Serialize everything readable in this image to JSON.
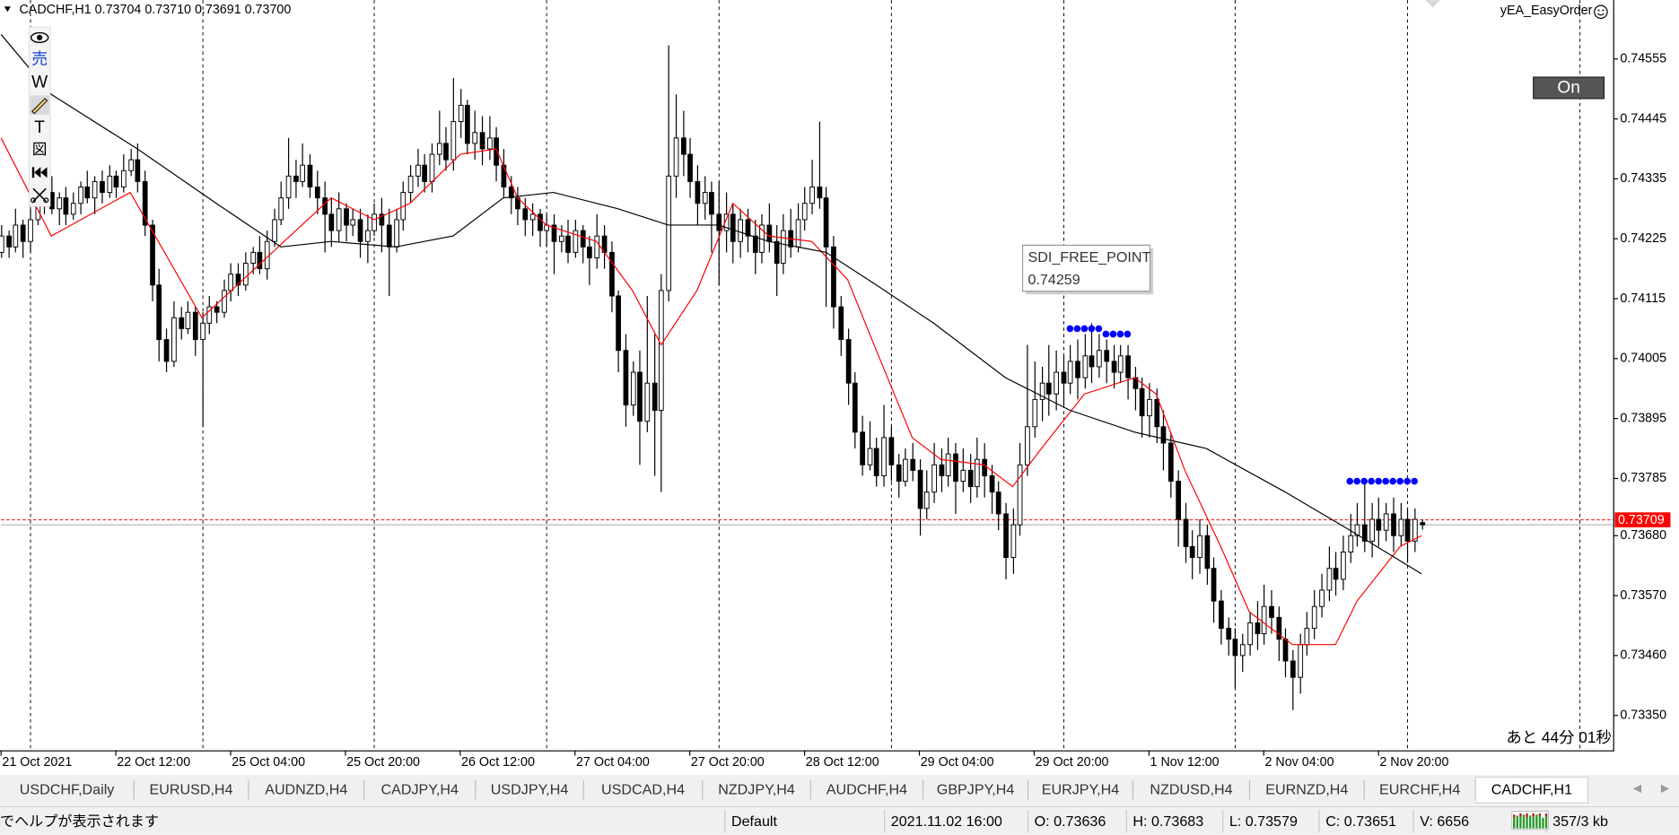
{
  "chart_data": {
    "type": "candlestick",
    "header": "CADCHF,H1  0.73704 0.73710 0.73691 0.73700",
    "expert": "yEA_EasyOrder",
    "button": "On",
    "countdown": "あと 44分 01秒",
    "toolbar": [
      "売",
      "W",
      "T",
      "図"
    ],
    "xlim": [
      0,
      225
    ],
    "ylim": [
      0.73286,
      0.74663
    ],
    "grid": false,
    "up_color": "#ffffff",
    "down_color": "#000000",
    "outline": "#000000",
    "xticks": [
      {
        "value": 0,
        "label": "21 Oct 2021"
      },
      {
        "value": 16,
        "label": "22 Oct 12:00"
      },
      {
        "value": 32,
        "label": "25 Oct 04:00"
      },
      {
        "value": 48,
        "label": "25 Oct 20:00"
      },
      {
        "value": 64,
        "label": "26 Oct 12:00"
      },
      {
        "value": 80,
        "label": "27 Oct 04:00"
      },
      {
        "value": 96,
        "label": "27 Oct 20:00"
      },
      {
        "value": 112,
        "label": "28 Oct 12:00"
      },
      {
        "value": 128,
        "label": "29 Oct 04:00"
      },
      {
        "value": 144,
        "label": "29 Oct 20:00"
      },
      {
        "value": 160,
        "label": "1 Nov 12:00"
      },
      {
        "value": 176,
        "label": "2 Nov 04:00"
      },
      {
        "value": 192,
        "label": "2 Nov 20:00"
      }
    ],
    "yticks": [
      0.74555,
      0.74445,
      0.74335,
      0.74225,
      0.74115,
      0.74005,
      0.73895,
      0.73785,
      {
        "value": 0.7368,
        "label": "0.73680"
      },
      {
        "value": 0.7357,
        "label": "0.73570"
      },
      {
        "value": 0.7346,
        "label": "0.73460"
      },
      {
        "value": 0.7335,
        "label": "0.73350"
      }
    ],
    "separators": [
      4,
      28,
      52,
      76,
      100,
      124,
      148,
      172,
      196,
      220
    ],
    "candles": {
      "open": [
        0.742,
        0.7423,
        0.7421,
        0.7425,
        0.7422,
        0.7426,
        0.7429,
        0.7431,
        0.7428,
        0.743,
        0.7427,
        0.7429,
        0.7432,
        0.743,
        0.7433,
        0.7431,
        0.7434,
        0.7432,
        0.7435,
        0.7437,
        0.7433,
        0.7425,
        0.7414,
        0.7404,
        0.74,
        0.7408,
        0.7406,
        0.7409,
        0.7404,
        0.7407,
        0.741,
        0.7409,
        0.7413,
        0.7416,
        0.7414,
        0.7418,
        0.742,
        0.7417,
        0.7422,
        0.7426,
        0.743,
        0.7434,
        0.7433,
        0.7436,
        0.7432,
        0.743,
        0.7427,
        0.7424,
        0.7428,
        0.7425,
        0.7426,
        0.7422,
        0.7424,
        0.7427,
        0.7425,
        0.7421,
        0.7426,
        0.7431,
        0.7434,
        0.7436,
        0.7433,
        0.7438,
        0.744,
        0.7437,
        0.7444,
        0.7447,
        0.744,
        0.7442,
        0.7439,
        0.7441,
        0.7436,
        0.7432,
        0.743,
        0.7428,
        0.7426,
        0.7427,
        0.7424,
        0.7425,
        0.7422,
        0.7423,
        0.742,
        0.7424,
        0.7421,
        0.7419,
        0.7423,
        0.742,
        0.7412,
        0.7402,
        0.7392,
        0.7398,
        0.7389,
        0.7396,
        0.7391,
        0.7413,
        0.7434,
        0.7441,
        0.7438,
        0.7433,
        0.7429,
        0.7431,
        0.7427,
        0.7424,
        0.7427,
        0.7422,
        0.7426,
        0.7423,
        0.742,
        0.7425,
        0.7422,
        0.7418,
        0.7424,
        0.7421,
        0.7426,
        0.7429,
        0.7432,
        0.743,
        0.7421,
        0.741,
        0.7404,
        0.7396,
        0.7387,
        0.7381,
        0.7384,
        0.7379,
        0.7386,
        0.7381,
        0.7378,
        0.7382,
        0.738,
        0.7373,
        0.7376,
        0.7381,
        0.7379,
        0.7383,
        0.7378,
        0.738,
        0.7377,
        0.7382,
        0.7379,
        0.7376,
        0.7372,
        0.7364,
        0.737,
        0.7381,
        0.7388,
        0.7393,
        0.7396,
        0.7394,
        0.7398,
        0.7396,
        0.74,
        0.7397,
        0.7401,
        0.7399,
        0.7402,
        0.74,
        0.7398,
        0.7401,
        0.7397,
        0.7395,
        0.739,
        0.7393,
        0.7388,
        0.7385,
        0.7378,
        0.7371,
        0.7366,
        0.7364,
        0.7368,
        0.7362,
        0.7356,
        0.7351,
        0.7349,
        0.7346,
        0.7348,
        0.7352,
        0.735,
        0.7355,
        0.7353,
        0.7349,
        0.7345,
        0.7342,
        0.7348,
        0.7351,
        0.7355,
        0.7358,
        0.7362,
        0.736,
        0.7365,
        0.7368,
        0.737,
        0.7367,
        0.7371,
        0.7369,
        0.7372,
        0.7368,
        0.7371,
        0.7367,
        0.73704
      ],
      "high": [
        0.7425,
        0.7424,
        0.7428,
        0.7426,
        0.7428,
        0.7431,
        0.7432,
        0.7434,
        0.7431,
        0.7432,
        0.7431,
        0.7433,
        0.7435,
        0.7434,
        0.7435,
        0.7436,
        0.7435,
        0.7438,
        0.7439,
        0.744,
        0.7435,
        0.7426,
        0.7417,
        0.7406,
        0.7411,
        0.741,
        0.7411,
        0.741,
        0.7409,
        0.7412,
        0.7411,
        0.7415,
        0.7418,
        0.7418,
        0.742,
        0.7421,
        0.7423,
        0.7424,
        0.7428,
        0.7433,
        0.7441,
        0.7437,
        0.744,
        0.7438,
        0.7435,
        0.7433,
        0.743,
        0.7431,
        0.7429,
        0.7428,
        0.7428,
        0.7427,
        0.7429,
        0.743,
        0.7428,
        0.7428,
        0.7433,
        0.7436,
        0.7439,
        0.7438,
        0.744,
        0.7446,
        0.7443,
        0.7452,
        0.745,
        0.7448,
        0.7446,
        0.7445,
        0.7445,
        0.7443,
        0.7439,
        0.7434,
        0.7432,
        0.743,
        0.7429,
        0.7428,
        0.7427,
        0.7427,
        0.7425,
        0.7426,
        0.7426,
        0.7425,
        0.7423,
        0.7427,
        0.7425,
        0.7422,
        0.7413,
        0.7405,
        0.74,
        0.7402,
        0.7412,
        0.7405,
        0.7416,
        0.7458,
        0.7449,
        0.7446,
        0.7441,
        0.7436,
        0.7434,
        0.7433,
        0.7433,
        0.7431,
        0.7429,
        0.7428,
        0.7428,
        0.7426,
        0.7427,
        0.7429,
        0.7425,
        0.7427,
        0.7428,
        0.7429,
        0.7432,
        0.7437,
        0.7444,
        0.7432,
        0.7423,
        0.7412,
        0.7406,
        0.7398,
        0.739,
        0.7389,
        0.7386,
        0.7392,
        0.7388,
        0.7383,
        0.7384,
        0.7385,
        0.7382,
        0.738,
        0.7385,
        0.7384,
        0.7386,
        0.7385,
        0.7384,
        0.7383,
        0.7386,
        0.7385,
        0.7381,
        0.7378,
        0.7374,
        0.7373,
        0.7385,
        0.7403,
        0.74,
        0.7399,
        0.7403,
        0.7402,
        0.7401,
        0.7403,
        0.7404,
        0.7405,
        0.7407,
        0.7405,
        0.7404,
        0.7403,
        0.7403,
        0.7403,
        0.7399,
        0.7397,
        0.7396,
        0.7395,
        0.7391,
        0.7387,
        0.738,
        0.7374,
        0.7369,
        0.7371,
        0.737,
        0.7364,
        0.7358,
        0.7353,
        0.7351,
        0.735,
        0.7354,
        0.7356,
        0.7359,
        0.7358,
        0.7355,
        0.7351,
        0.7347,
        0.735,
        0.7354,
        0.7358,
        0.7361,
        0.7366,
        0.7365,
        0.7368,
        0.7372,
        0.7374,
        0.7378,
        0.7374,
        0.7375,
        0.7374,
        0.7375,
        0.7374,
        0.7373,
        0.7373,
        0.7371
      ],
      "low": [
        0.7419,
        0.7419,
        0.742,
        0.7419,
        0.742,
        0.7425,
        0.7427,
        0.7427,
        0.7425,
        0.7425,
        0.7426,
        0.7427,
        0.7429,
        0.7427,
        0.7429,
        0.743,
        0.743,
        0.7431,
        0.7434,
        0.7431,
        0.7423,
        0.7411,
        0.74,
        0.7398,
        0.7399,
        0.7404,
        0.7405,
        0.7401,
        0.7388,
        0.7405,
        0.7407,
        0.7408,
        0.7411,
        0.7412,
        0.7413,
        0.7416,
        0.7416,
        0.7415,
        0.7421,
        0.7425,
        0.7428,
        0.743,
        0.7432,
        0.743,
        0.7427,
        0.742,
        0.7421,
        0.7422,
        0.7422,
        0.7423,
        0.7419,
        0.7418,
        0.7423,
        0.742,
        0.7412,
        0.742,
        0.7424,
        0.7429,
        0.7432,
        0.7431,
        0.7431,
        0.7436,
        0.7435,
        0.7435,
        0.7441,
        0.7438,
        0.7437,
        0.7436,
        0.7437,
        0.7433,
        0.743,
        0.7427,
        0.7425,
        0.7423,
        0.7423,
        0.7421,
        0.7421,
        0.7416,
        0.742,
        0.7418,
        0.7419,
        0.7418,
        0.7414,
        0.7417,
        0.7417,
        0.7409,
        0.7398,
        0.7388,
        0.739,
        0.7381,
        0.7387,
        0.7379,
        0.7376,
        0.7411,
        0.743,
        0.7434,
        0.743,
        0.7425,
        0.7426,
        0.742,
        0.7414,
        0.742,
        0.7418,
        0.7419,
        0.742,
        0.7416,
        0.7418,
        0.742,
        0.7412,
        0.7416,
        0.7419,
        0.742,
        0.7424,
        0.7427,
        0.7428,
        0.741,
        0.7406,
        0.7401,
        0.7392,
        0.7384,
        0.7379,
        0.738,
        0.7377,
        0.7377,
        0.7378,
        0.7375,
        0.7377,
        0.7378,
        0.7368,
        0.7371,
        0.7374,
        0.7376,
        0.7377,
        0.7372,
        0.7376,
        0.7374,
        0.7375,
        0.7375,
        0.7372,
        0.7369,
        0.736,
        0.7361,
        0.7368,
        0.7379,
        0.7386,
        0.7389,
        0.739,
        0.7391,
        0.7392,
        0.7394,
        0.7393,
        0.7395,
        0.7396,
        0.7397,
        0.7396,
        0.7395,
        0.7396,
        0.7393,
        0.7391,
        0.7386,
        0.7386,
        0.7385,
        0.738,
        0.7375,
        0.7366,
        0.7363,
        0.736,
        0.7361,
        0.7359,
        0.7352,
        0.7348,
        0.7346,
        0.734,
        0.7343,
        0.7346,
        0.7347,
        0.7348,
        0.735,
        0.7345,
        0.7342,
        0.7336,
        0.7339,
        0.7346,
        0.7349,
        0.7353,
        0.7356,
        0.7357,
        0.7358,
        0.7363,
        0.7366,
        0.7365,
        0.7364,
        0.7366,
        0.7367,
        0.7365,
        0.7366,
        0.7363,
        0.7365,
        0.73691
      ],
      "close": [
        0.7423,
        0.7421,
        0.7425,
        0.7422,
        0.7426,
        0.7429,
        0.7431,
        0.7428,
        0.743,
        0.7427,
        0.7429,
        0.7432,
        0.743,
        0.7433,
        0.7431,
        0.7434,
        0.7432,
        0.7435,
        0.7437,
        0.7433,
        0.7425,
        0.7414,
        0.7404,
        0.74,
        0.7408,
        0.7406,
        0.7409,
        0.7404,
        0.7407,
        0.741,
        0.7409,
        0.7413,
        0.7416,
        0.7414,
        0.7418,
        0.742,
        0.7417,
        0.7422,
        0.7426,
        0.743,
        0.7434,
        0.7433,
        0.7436,
        0.7432,
        0.743,
        0.7427,
        0.7424,
        0.7428,
        0.7425,
        0.7426,
        0.7422,
        0.7424,
        0.7427,
        0.7425,
        0.7421,
        0.7426,
        0.7431,
        0.7434,
        0.7436,
        0.7433,
        0.7438,
        0.744,
        0.7437,
        0.7444,
        0.7447,
        0.744,
        0.7442,
        0.7439,
        0.7441,
        0.7436,
        0.7432,
        0.743,
        0.7428,
        0.7426,
        0.7427,
        0.7424,
        0.7425,
        0.7422,
        0.7423,
        0.742,
        0.7424,
        0.7421,
        0.7419,
        0.7423,
        0.742,
        0.7412,
        0.7402,
        0.7392,
        0.7398,
        0.7389,
        0.7396,
        0.7391,
        0.7413,
        0.7434,
        0.7441,
        0.7438,
        0.7433,
        0.7429,
        0.7431,
        0.7427,
        0.7424,
        0.7427,
        0.7422,
        0.7426,
        0.7423,
        0.742,
        0.7425,
        0.7422,
        0.7418,
        0.7424,
        0.7421,
        0.7426,
        0.7429,
        0.7432,
        0.743,
        0.7421,
        0.741,
        0.7404,
        0.7396,
        0.7387,
        0.7381,
        0.7384,
        0.7379,
        0.7386,
        0.7381,
        0.7378,
        0.7382,
        0.738,
        0.7373,
        0.7376,
        0.7381,
        0.7379,
        0.7383,
        0.7378,
        0.738,
        0.7377,
        0.7382,
        0.7379,
        0.7376,
        0.7372,
        0.7364,
        0.737,
        0.7381,
        0.7388,
        0.7393,
        0.7396,
        0.7394,
        0.7398,
        0.7396,
        0.74,
        0.7397,
        0.7401,
        0.7399,
        0.7402,
        0.74,
        0.7398,
        0.7401,
        0.7397,
        0.7395,
        0.739,
        0.7393,
        0.7388,
        0.7385,
        0.7378,
        0.7371,
        0.7366,
        0.7364,
        0.7368,
        0.7362,
        0.7356,
        0.7351,
        0.7349,
        0.7346,
        0.7348,
        0.7352,
        0.735,
        0.7355,
        0.7353,
        0.7349,
        0.7345,
        0.7342,
        0.7348,
        0.7351,
        0.7355,
        0.7358,
        0.7362,
        0.736,
        0.7365,
        0.7368,
        0.737,
        0.7367,
        0.7371,
        0.7369,
        0.7372,
        0.7368,
        0.7371,
        0.7367,
        0.7371,
        0.737
      ]
    },
    "lines": [
      {
        "color": "#ff0000",
        "x": [
          0,
          7,
          18,
          28,
          37,
          46,
          52,
          57,
          64,
          69,
          72,
          76,
          83,
          88,
          92,
          97,
          102,
          107,
          113,
          118,
          122,
          127,
          131,
          137,
          141,
          145,
          151,
          158,
          161,
          165,
          170,
          174,
          180,
          186,
          189,
          195,
          198
        ],
        "values": [
          0.7441,
          0.7423,
          0.7431,
          0.7408,
          0.7419,
          0.743,
          0.7426,
          0.7429,
          0.7438,
          0.7439,
          0.743,
          0.7425,
          0.7422,
          0.7413,
          0.7403,
          0.7413,
          0.7429,
          0.7423,
          0.7422,
          0.7415,
          0.7402,
          0.7386,
          0.7382,
          0.7381,
          0.7377,
          0.7384,
          0.7394,
          0.7397,
          0.7394,
          0.738,
          0.7366,
          0.7354,
          0.7348,
          0.7348,
          0.7356,
          0.7366,
          0.7368
        ]
      },
      {
        "color": "#000000",
        "x": [
          0,
          7,
          19,
          30,
          39,
          46,
          55,
          63,
          70,
          77,
          86,
          93,
          100,
          107,
          115,
          122,
          130,
          140,
          149,
          158,
          168,
          179,
          188,
          198
        ],
        "values": [
          0.746,
          0.7449,
          0.7439,
          0.7429,
          0.7421,
          0.7422,
          0.7421,
          0.7423,
          0.743,
          0.7431,
          0.7428,
          0.7425,
          0.7425,
          0.7422,
          0.742,
          0.7414,
          0.7407,
          0.7397,
          0.7391,
          0.7387,
          0.7384,
          0.7376,
          0.7369,
          0.7361
        ]
      }
    ],
    "dots": {
      "color": "#0000ff",
      "x": [
        149,
        150,
        151,
        152,
        153,
        154,
        155,
        156,
        157,
        188,
        189,
        190,
        191,
        192,
        193,
        194,
        195,
        196,
        197
      ],
      "values": [
        0.7406,
        0.7406,
        0.7406,
        0.7406,
        0.7406,
        0.7405,
        0.7405,
        0.7405,
        0.7405,
        0.7378,
        0.7378,
        0.7378,
        0.7378,
        0.7378,
        0.7378,
        0.7378,
        0.7378,
        0.7378,
        0.7378
      ]
    },
    "bid": 0.73709,
    "bid_color": "#ff0000",
    "tooltip": {
      "name": "SDI_FREE_POINT",
      "value": 0.74259
    },
    "tabs": [
      "USDCHF,Daily",
      "EURUSD,H4",
      "AUDNZD,H4",
      "CADJPY,H4",
      "USDJPY,H4",
      "USDCAD,H4",
      "NZDJPY,H4",
      "AUDCHF,H4",
      "GBPJPY,H4",
      "EURJPY,H4",
      "NZDUSD,H4",
      "EURNZD,H4",
      "EURCHF,H4",
      "CADCHF,H1"
    ],
    "status": [
      "でヘルプが表示されます",
      "Default",
      "2021.11.02 16:00",
      "O: 0.73636",
      "H: 0.73683",
      "L: 0.73579",
      "C: 0.73651",
      "V: 6656",
      "357/3 kb"
    ]
  }
}
